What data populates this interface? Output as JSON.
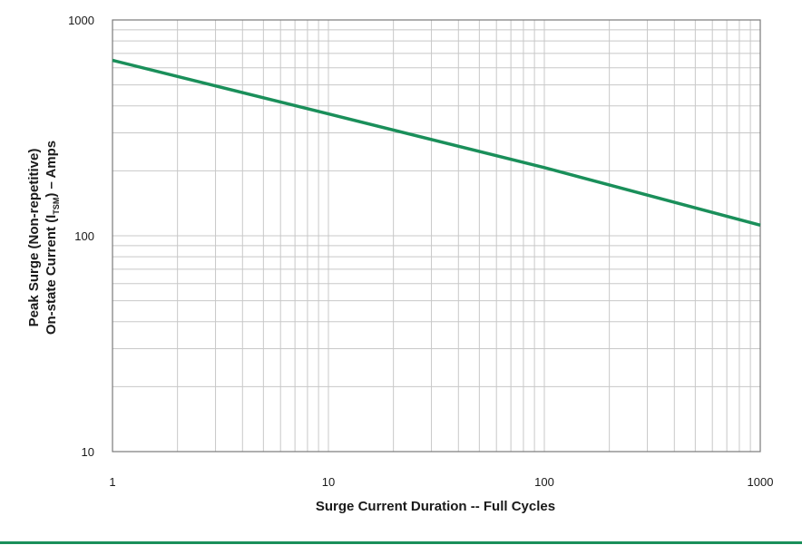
{
  "chart_data": {
    "type": "line",
    "x_scale": "log",
    "y_scale": "log",
    "xlim": [
      1,
      1000
    ],
    "ylim": [
      10,
      1000
    ],
    "x_ticks": [
      "1",
      "10",
      "100",
      "1000"
    ],
    "y_ticks": [
      "10",
      "100",
      "1000"
    ],
    "xlabel": "Surge Current Duration -- Full Cycles",
    "ylabel": {
      "line1": "Peak Surge (Non-repetitive)",
      "line2_prefix": "On-state Current (I",
      "line2_sub": "TSM",
      "line2_suffix": ") – Amps"
    },
    "grid": true,
    "series": [
      {
        "x": [
          1,
          10,
          100,
          1000
        ],
        "y": [
          650,
          367,
          207,
          112
        ]
      }
    ]
  },
  "colors": {
    "line": "#1a8f5a",
    "grid": "#c8c8c8",
    "axis": "#7a7a7a",
    "accent_rule": "#1a8f5a"
  }
}
